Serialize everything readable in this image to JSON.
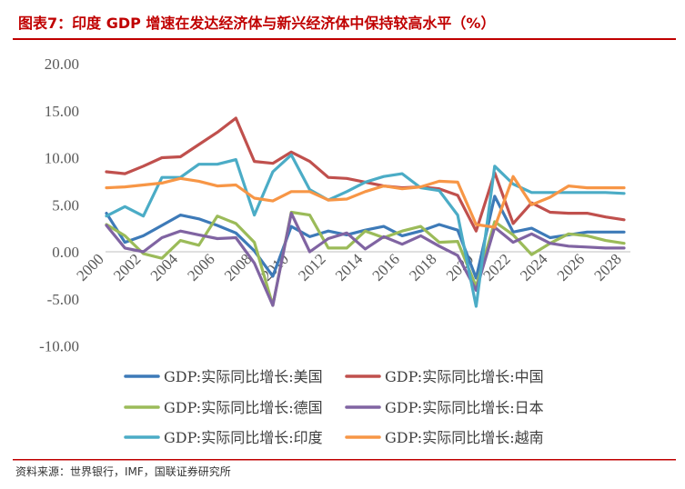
{
  "header": {
    "title": "图表7：印度 GDP 增速在发达经济体与新兴经济体中保持较高水平（%）"
  },
  "footer": {
    "source": "资料来源：世界银行，IMF，国联证券研究所"
  },
  "colors": {
    "title": "#c00000",
    "rule": "#c00000",
    "axis": "#595959"
  },
  "chart_data": {
    "type": "line",
    "x": [
      2000,
      2001,
      2002,
      2003,
      2004,
      2005,
      2006,
      2007,
      2008,
      2009,
      2010,
      2011,
      2012,
      2013,
      2014,
      2015,
      2016,
      2017,
      2018,
      2019,
      2020,
      2021,
      2022,
      2023,
      2024,
      2025,
      2026,
      2027,
      2028
    ],
    "x_tick_labels": [
      "2000",
      "2002",
      "2004",
      "2006",
      "2008",
      "2010",
      "2012",
      "2014",
      "2016",
      "2018",
      "2020",
      "2022",
      "2024",
      "2026",
      "2028"
    ],
    "y_tick_labels": [
      "20.00",
      "15.00",
      "10.00",
      "5.00",
      "0.00",
      "-5.00",
      "-10.00"
    ],
    "ylim": [
      -10,
      20
    ],
    "grid": false,
    "legend_position": "bottom",
    "xlabel": "",
    "ylabel": "",
    "series": [
      {
        "name": "GDP:实际同比增长:美国",
        "color": "#3d7ab8",
        "values": [
          4.1,
          1.0,
          1.7,
          2.8,
          3.9,
          3.5,
          2.8,
          2.0,
          0.1,
          -2.6,
          2.7,
          1.6,
          2.2,
          1.8,
          2.3,
          2.7,
          1.7,
          2.2,
          2.9,
          2.3,
          -2.8,
          5.9,
          2.1,
          2.5,
          1.5,
          1.8,
          2.1,
          2.1,
          2.1
        ]
      },
      {
        "name": "GDP:实际同比增长:中国",
        "color": "#c0504d",
        "values": [
          8.5,
          8.3,
          9.1,
          10.0,
          10.1,
          11.4,
          12.7,
          14.2,
          9.6,
          9.4,
          10.6,
          9.6,
          7.9,
          7.8,
          7.4,
          7.0,
          6.8,
          6.9,
          6.7,
          6.0,
          2.2,
          8.4,
          3.0,
          5.2,
          4.2,
          4.1,
          4.1,
          3.7,
          3.4
        ]
      },
      {
        "name": "GDP:实际同比增长:德国",
        "color": "#9bbb59",
        "values": [
          2.9,
          1.7,
          -0.2,
          -0.7,
          1.2,
          0.7,
          3.8,
          3.0,
          1.0,
          -5.7,
          4.2,
          3.9,
          0.4,
          0.4,
          2.2,
          1.5,
          2.2,
          2.7,
          1.0,
          1.1,
          -3.7,
          3.2,
          1.8,
          -0.3,
          0.9,
          1.9,
          1.7,
          1.2,
          0.9
        ]
      },
      {
        "name": "GDP:实际同比增长:日本",
        "color": "#8064a2",
        "values": [
          2.8,
          0.4,
          0.0,
          1.5,
          2.2,
          1.8,
          1.4,
          1.5,
          -1.2,
          -5.7,
          4.1,
          0.0,
          1.4,
          2.0,
          0.3,
          1.6,
          0.8,
          1.7,
          0.6,
          -0.4,
          -4.1,
          2.6,
          1.0,
          1.9,
          0.9,
          0.6,
          0.5,
          0.4,
          0.4
        ]
      },
      {
        "name": "GDP:实际同比增长:印度",
        "color": "#4bacc6",
        "values": [
          3.8,
          4.8,
          3.8,
          7.9,
          7.9,
          9.3,
          9.3,
          9.8,
          3.9,
          8.5,
          10.3,
          6.6,
          5.5,
          6.4,
          7.4,
          8.0,
          8.3,
          6.8,
          6.5,
          3.9,
          -5.8,
          9.1,
          7.2,
          6.3,
          6.3,
          6.3,
          6.3,
          6.3,
          6.2
        ]
      },
      {
        "name": "GDP:实际同比增长:越南",
        "color": "#f79646",
        "values": [
          6.8,
          6.9,
          7.1,
          7.3,
          7.8,
          7.5,
          7.0,
          7.1,
          5.7,
          5.4,
          6.4,
          6.4,
          5.5,
          5.6,
          6.4,
          7.0,
          6.7,
          6.9,
          7.5,
          7.4,
          2.9,
          2.6,
          8.0,
          5.0,
          5.8,
          7.0,
          6.8,
          6.8,
          6.8
        ]
      }
    ]
  }
}
